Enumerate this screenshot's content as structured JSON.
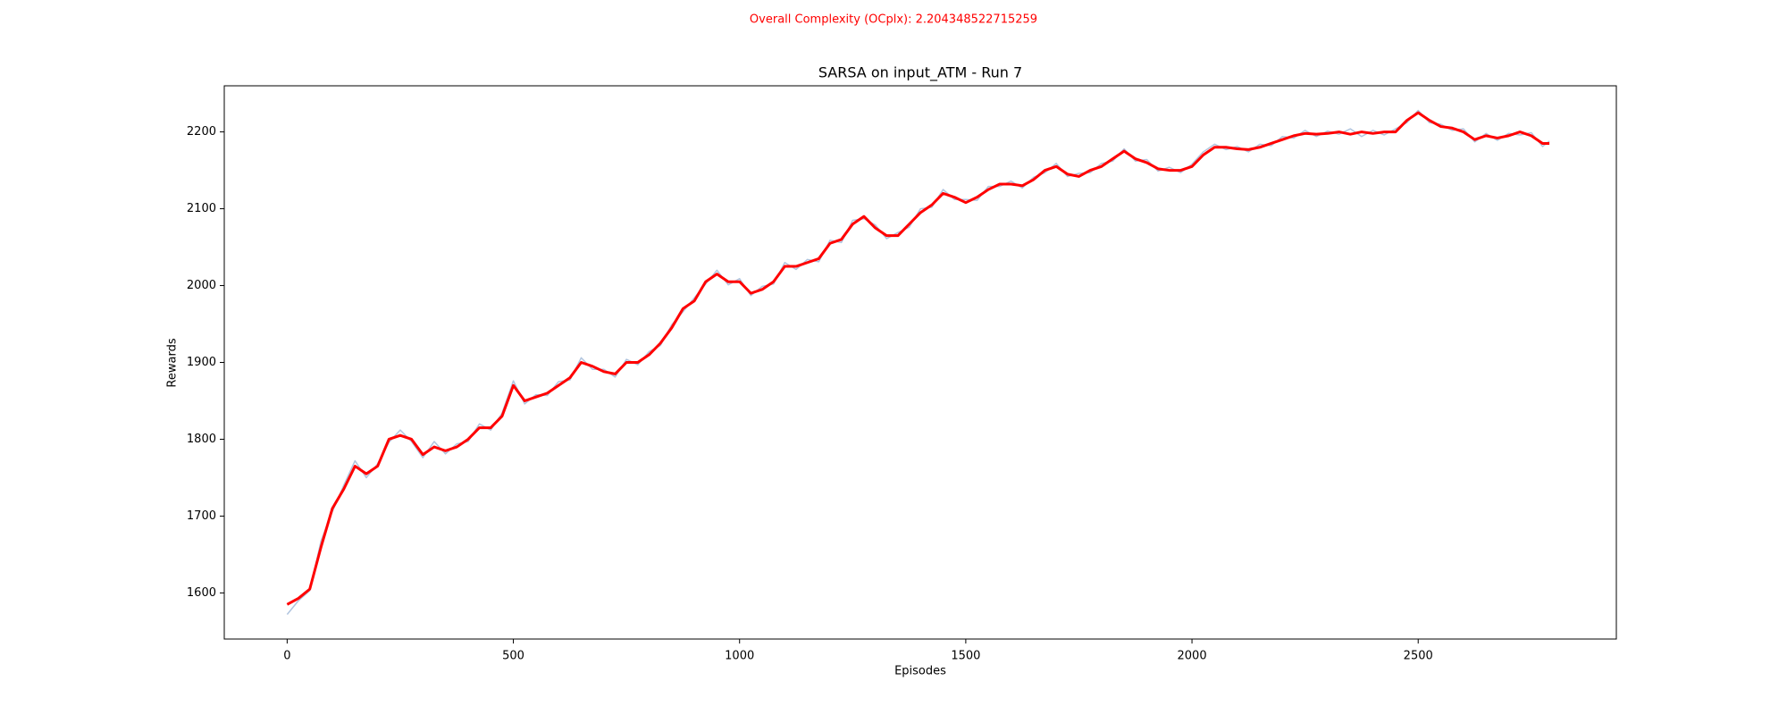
{
  "chart_data": {
    "type": "line",
    "suptitle": "Overall Complexity (OCplx): 2.204348522715259",
    "suptitle_color": "#ff0000",
    "title": "SARSA on input_ATM - Run 7",
    "xlabel": "Episodes",
    "ylabel": "Rewards",
    "xlim": [
      -139,
      2938
    ],
    "ylim": [
      1540,
      2260
    ],
    "xticks": [
      0,
      500,
      1000,
      1500,
      2000,
      2500
    ],
    "yticks": [
      1600,
      1700,
      1800,
      1900,
      2000,
      2100,
      2200
    ],
    "x": [
      0,
      25,
      50,
      75,
      100,
      125,
      150,
      175,
      200,
      225,
      250,
      275,
      300,
      325,
      350,
      375,
      400,
      425,
      450,
      475,
      500,
      525,
      550,
      575,
      600,
      625,
      650,
      675,
      700,
      725,
      750,
      775,
      800,
      825,
      850,
      875,
      900,
      925,
      950,
      975,
      1000,
      1025,
      1050,
      1075,
      1100,
      1125,
      1150,
      1175,
      1200,
      1225,
      1250,
      1275,
      1300,
      1325,
      1350,
      1375,
      1400,
      1425,
      1450,
      1475,
      1500,
      1525,
      1550,
      1575,
      1600,
      1625,
      1650,
      1675,
      1700,
      1725,
      1750,
      1775,
      1800,
      1825,
      1850,
      1875,
      1900,
      1925,
      1950,
      1975,
      2000,
      2025,
      2050,
      2075,
      2100,
      2125,
      2150,
      2175,
      2200,
      2225,
      2250,
      2275,
      2300,
      2325,
      2350,
      2375,
      2400,
      2425,
      2450,
      2475,
      2500,
      2525,
      2550,
      2575,
      2600,
      2625,
      2650,
      2675,
      2700,
      2725,
      2750,
      2775,
      2790
    ],
    "series": [
      {
        "color": "#b0c4de",
        "width": 1.5,
        "values": [
          1572,
          1590,
          1603,
          1668,
          1706,
          1740,
          1772,
          1750,
          1768,
          1796,
          1812,
          1797,
          1776,
          1797,
          1781,
          1794,
          1797,
          1820,
          1812,
          1834,
          1876,
          1846,
          1858,
          1857,
          1875,
          1877,
          1906,
          1891,
          1891,
          1881,
          1904,
          1897,
          1914,
          1922,
          1949,
          1966,
          1984,
          2002,
          2020,
          2001,
          2009,
          1987,
          1999,
          2002,
          2030,
          2021,
          2034,
          2031,
          2059,
          2056,
          2085,
          2087,
          2079,
          2061,
          2069,
          2076,
          2100,
          2102,
          2125,
          2112,
          2112,
          2111,
          2129,
          2129,
          2136,
          2127,
          2141,
          2147,
          2159,
          2142,
          2146,
          2147,
          2159,
          2162,
          2178,
          2162,
          2164,
          2149,
          2154,
          2147,
          2158,
          2174,
          2184,
          2177,
          2181,
          2174,
          2184,
          2182,
          2194,
          2192,
          2202,
          2194,
          2201,
          2197,
          2204,
          2194,
          2202,
          2196,
          2204,
          2212,
          2228,
          2212,
          2210,
          2202,
          2204,
          2187,
          2198,
          2189,
          2198,
          2196,
          2199,
          2181,
          2188
        ]
      },
      {
        "color": "#ff0000",
        "width": 3,
        "values": [
          1585,
          1593,
          1605,
          1660,
          1710,
          1735,
          1765,
          1755,
          1765,
          1800,
          1805,
          1800,
          1780,
          1790,
          1785,
          1790,
          1800,
          1815,
          1815,
          1830,
          1870,
          1850,
          1855,
          1860,
          1870,
          1880,
          1900,
          1895,
          1888,
          1885,
          1900,
          1900,
          1910,
          1925,
          1945,
          1970,
          1980,
          2005,
          2015,
          2005,
          2005,
          1990,
          1995,
          2005,
          2025,
          2025,
          2030,
          2035,
          2055,
          2060,
          2080,
          2090,
          2075,
          2065,
          2065,
          2080,
          2095,
          2105,
          2120,
          2115,
          2108,
          2115,
          2125,
          2132,
          2132,
          2130,
          2138,
          2150,
          2155,
          2145,
          2142,
          2150,
          2155,
          2165,
          2175,
          2165,
          2160,
          2152,
          2150,
          2150,
          2155,
          2170,
          2180,
          2180,
          2178,
          2177,
          2180,
          2185,
          2190,
          2195,
          2198,
          2197,
          2198,
          2200,
          2197,
          2200,
          2198,
          2200,
          2200,
          2215,
          2225,
          2215,
          2207,
          2205,
          2200,
          2190,
          2195,
          2192,
          2195,
          2200,
          2195,
          2185,
          2185
        ]
      }
    ]
  }
}
